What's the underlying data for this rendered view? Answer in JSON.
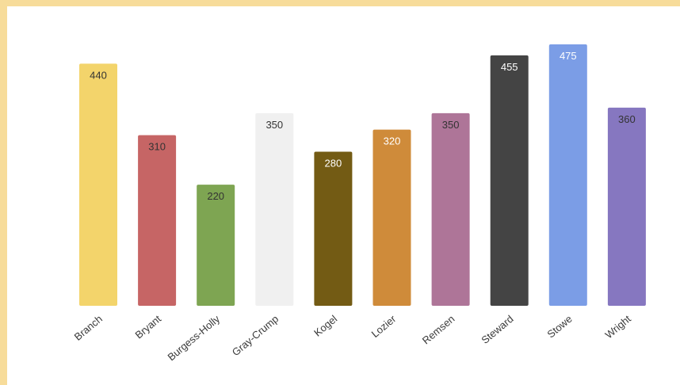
{
  "chart_data": {
    "type": "bar",
    "title": "",
    "xlabel": "",
    "ylabel": "",
    "ylim": [
      0,
      500
    ],
    "grid": false,
    "categories": [
      "Branch",
      "Bryant",
      "Burgess-Holly",
      "Gray-Crump",
      "Kogel",
      "Lozier",
      "Remsen",
      "Steward",
      "Stowe",
      "Wright"
    ],
    "values": [
      440,
      310,
      220,
      350,
      280,
      320,
      350,
      455,
      475,
      360
    ],
    "colors": [
      "#f3d46b",
      "#c66565",
      "#7ea552",
      "#f0f0f0",
      "#735b14",
      "#cf8b3a",
      "#ae7598",
      "#444444",
      "#7b9de6",
      "#8677c0"
    ],
    "label_colors": [
      "#333333",
      "#333333",
      "#333333",
      "#333333",
      "#ffffff",
      "#ffffff",
      "#333333",
      "#ffffff",
      "#ffffff",
      "#333333"
    ],
    "frame_color": "#f7dc9a"
  }
}
